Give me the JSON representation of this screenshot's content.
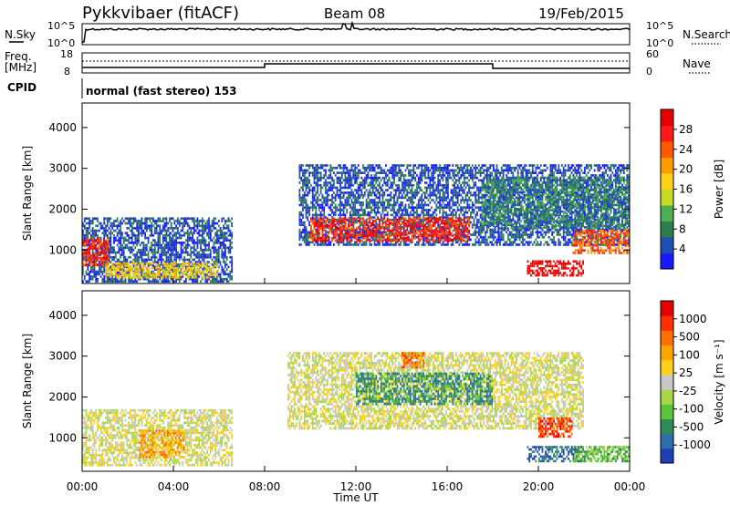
{
  "header": {
    "title": "Pykkvibaer (fitACF)",
    "beam": "Beam 08",
    "date": "19/Feb/2015"
  },
  "panels": {
    "nsky": {
      "left_label": "N.Sky",
      "left_ticks": [
        "10^5",
        "10^0"
      ],
      "right_ticks": [
        "10^5",
        "10^0"
      ],
      "right_label": "N.Search"
    },
    "freq": {
      "left_label_line1": "Freq.",
      "left_label_line2": "[MHz]",
      "left_ticks": [
        "18",
        "8"
      ],
      "right_ticks": [
        "60",
        "0"
      ],
      "right_label": "Nave"
    },
    "cpid": {
      "label": "CPID",
      "text": "normal (fast stereo) 153"
    }
  },
  "colorbars": {
    "power": {
      "label": "Power [dB]",
      "tick_labels": [
        "28",
        "24",
        "20",
        "16",
        "12",
        "8",
        "4"
      ],
      "colors": [
        "#1a1aff",
        "#1f4fb5",
        "#2e7d4f",
        "#4caf50",
        "#c9d820",
        "#ffd21a",
        "#ff9c00",
        "#ff5a00",
        "#ff1a1a",
        "#e60000"
      ]
    },
    "velocity": {
      "label": "Velocity [m s⁻¹]",
      "tick_labels": [
        "1000",
        "500",
        "100",
        "25",
        "-25",
        "-100",
        "-500",
        "-1000"
      ],
      "colors": [
        "#1f3fb5",
        "#2e6fa8",
        "#2e8b57",
        "#5cc33a",
        "#a8d84a",
        "#c8c8c8",
        "#ffd21a",
        "#ffa500",
        "#ff7000",
        "#ff3000",
        "#e60000"
      ]
    }
  },
  "chart_data": [
    {
      "type": "heatmap",
      "name": "power",
      "ylabel": "Slant Range [km]",
      "yticks": [
        1000,
        2000,
        3000,
        4000
      ],
      "ylim": [
        180,
        4600
      ],
      "xlim_hours": [
        0,
        24
      ],
      "bands": [
        {
          "t0": 0.0,
          "t1": 6.6,
          "r0": 200,
          "r1": 1800,
          "level": 1
        },
        {
          "t0": 0.0,
          "t1": 1.2,
          "r0": 600,
          "r1": 1300,
          "level": 8
        },
        {
          "t0": 1.0,
          "t1": 6.0,
          "r0": 300,
          "r1": 700,
          "level": 5
        },
        {
          "t0": 9.5,
          "t1": 24.0,
          "r0": 1100,
          "r1": 3100,
          "level": 1
        },
        {
          "t0": 10.0,
          "t1": 17.0,
          "r0": 1200,
          "r1": 1800,
          "level": 8
        },
        {
          "t0": 17.5,
          "t1": 24.0,
          "r0": 1500,
          "r1": 2800,
          "level": 2
        },
        {
          "t0": 19.5,
          "t1": 22.0,
          "r0": 350,
          "r1": 750,
          "level": 9
        },
        {
          "t0": 21.5,
          "t1": 24.0,
          "r0": 900,
          "r1": 1500,
          "level": 7
        }
      ]
    },
    {
      "type": "heatmap",
      "name": "velocity",
      "ylabel": "Slant Range [km]",
      "yticks": [
        1000,
        2000,
        3000,
        4000
      ],
      "ylim": [
        180,
        4600
      ],
      "xlim_hours": [
        0,
        24
      ],
      "xticks": [
        "00:00",
        "04:00",
        "08:00",
        "12:00",
        "16:00",
        "20:00",
        "00:00"
      ],
      "xlabel": "Time UT",
      "bands": [
        {
          "t0": 0.0,
          "t1": 6.6,
          "r0": 300,
          "r1": 1700,
          "level": 5
        },
        {
          "t0": 2.5,
          "t1": 4.5,
          "r0": 500,
          "r1": 1200,
          "level": 7
        },
        {
          "t0": 9.0,
          "t1": 22.0,
          "r0": 1200,
          "r1": 3100,
          "level": 5
        },
        {
          "t0": 12.0,
          "t1": 18.0,
          "r0": 1800,
          "r1": 2600,
          "level": 2
        },
        {
          "t0": 14.0,
          "t1": 15.0,
          "r0": 2700,
          "r1": 3100,
          "level": 8
        },
        {
          "t0": 19.5,
          "t1": 22.0,
          "r0": 400,
          "r1": 800,
          "level": 1
        },
        {
          "t0": 20.0,
          "t1": 21.5,
          "r0": 1000,
          "r1": 1500,
          "level": 9
        },
        {
          "t0": 21.5,
          "t1": 24.0,
          "r0": 400,
          "r1": 800,
          "level": 3
        }
      ]
    }
  ]
}
